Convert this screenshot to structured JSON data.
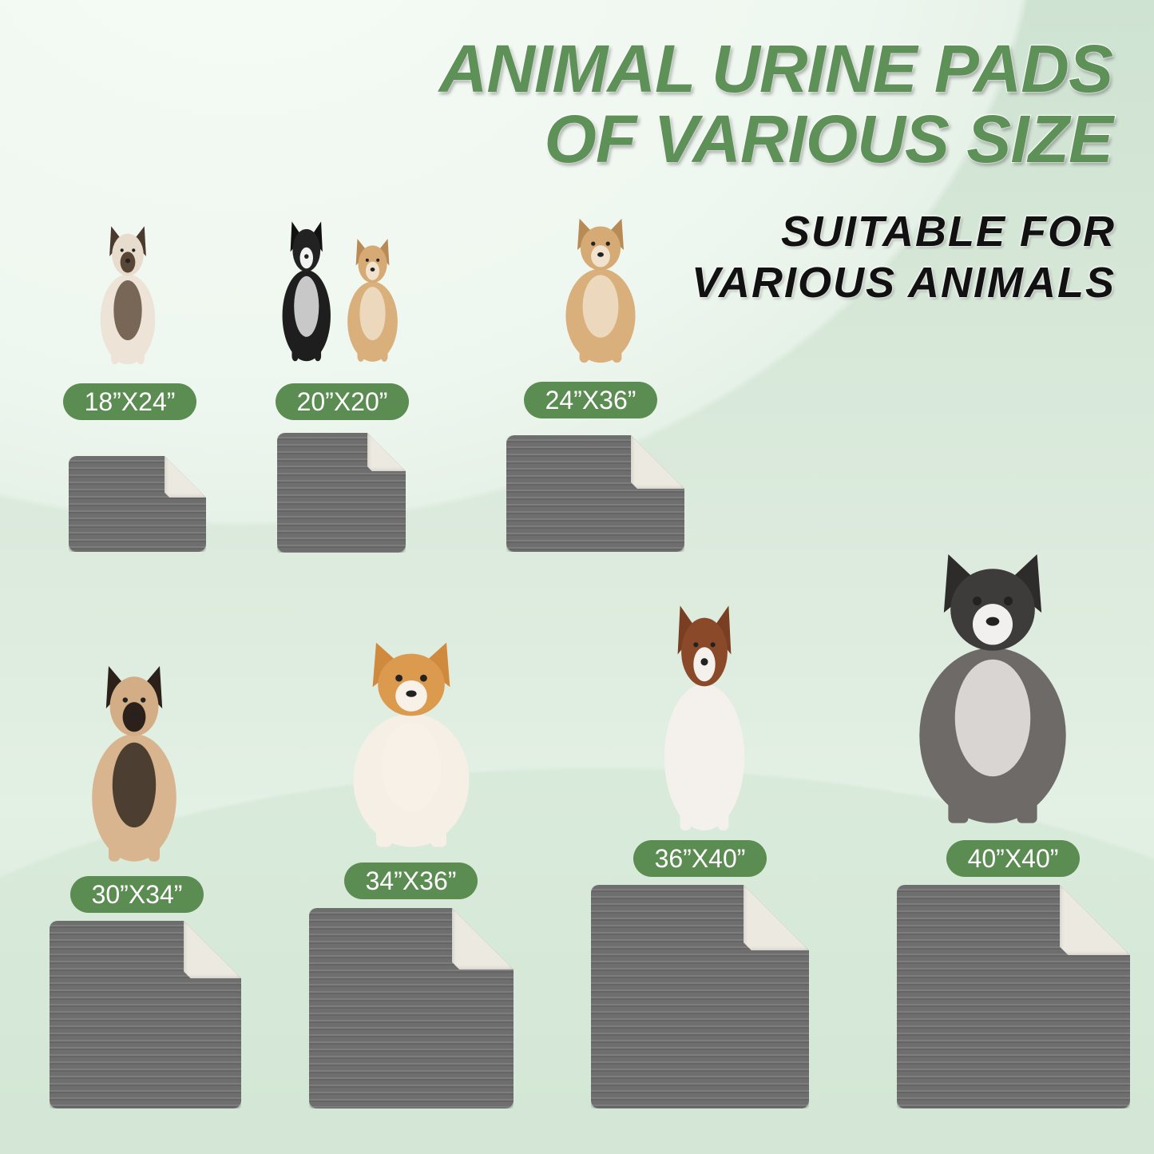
{
  "headline": {
    "line1": "ANIMAL URINE PADS",
    "line2": "OF VARIOUS SIZE"
  },
  "subheadline": {
    "line1": "SUITABLE FOR",
    "line2": "VARIOUS ANIMALS"
  },
  "colors": {
    "accent_green": "#5b8c52",
    "pad_gray": "#6e6e6e",
    "pad_underside": "#ece9e1"
  },
  "sizes": [
    {
      "label": "18”X24”",
      "animal": "siamese-cat"
    },
    {
      "label": "20”X20”",
      "animal": "cat-and-puppy"
    },
    {
      "label": "24”X36”",
      "animal": "tan-dog"
    },
    {
      "label": "30”X34”",
      "animal": "pug"
    },
    {
      "label": "34”X36”",
      "animal": "corgi"
    },
    {
      "label": "36”X40”",
      "animal": "australian-shepherd"
    },
    {
      "label": "40”X40”",
      "animal": "husky"
    }
  ]
}
